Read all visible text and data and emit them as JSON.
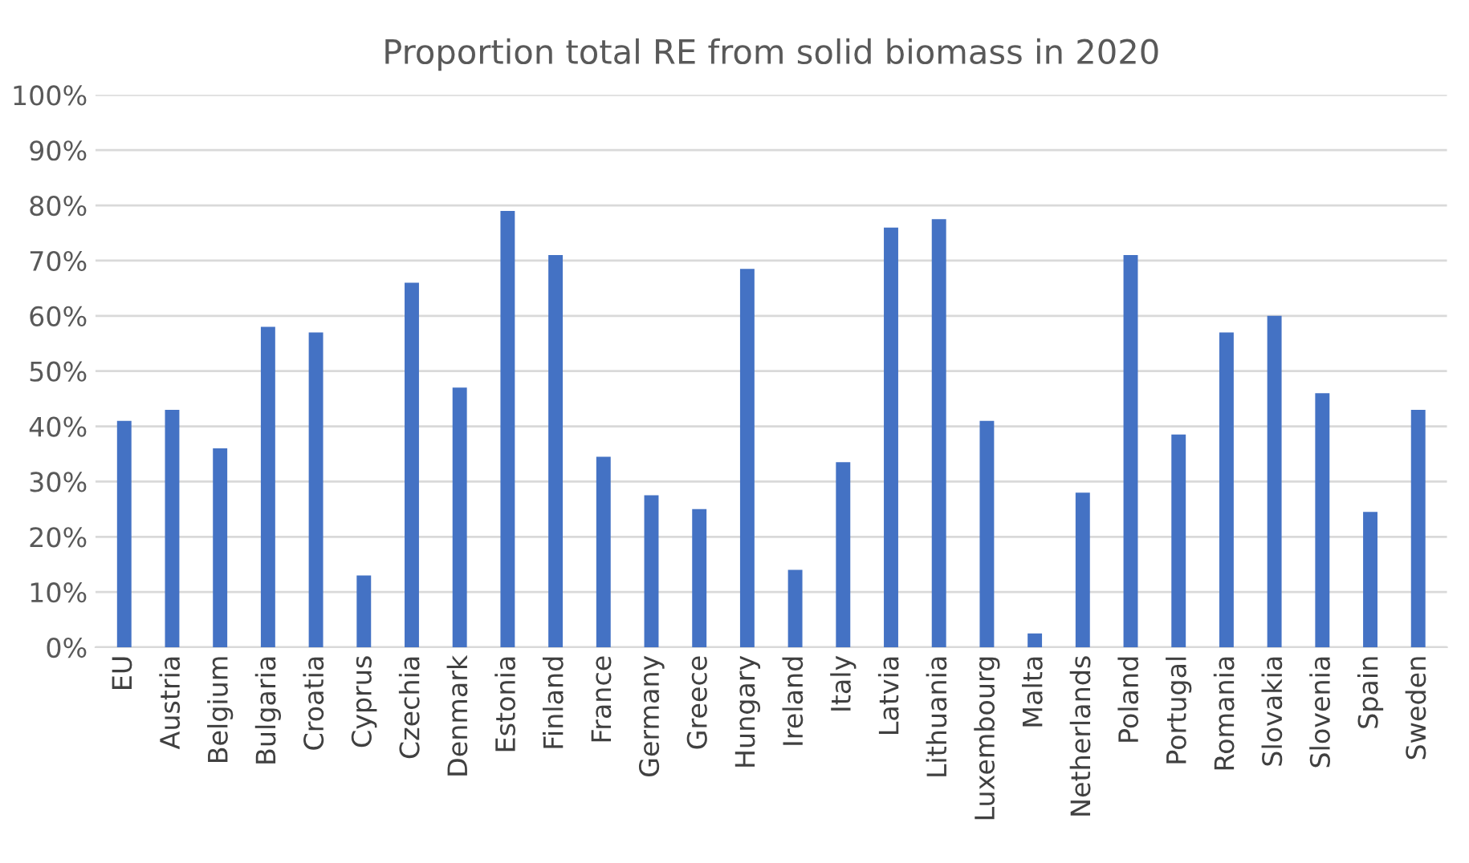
{
  "chart_data": {
    "type": "bar",
    "title": "Proportion total RE from solid biomass in 2020",
    "categories": [
      "EU",
      "Austria",
      "Belgium",
      "Bulgaria",
      "Croatia",
      "Cyprus",
      "Czechia",
      "Denmark",
      "Estonia",
      "Finland",
      "France",
      "Germany",
      "Greece",
      "Hungary",
      "Ireland",
      "Italy",
      "Latvia",
      "Lithuania",
      "Luxembourg",
      "Malta",
      "Netherlands",
      "Poland",
      "Portugal",
      "Romania",
      "Slovakia",
      "Slovenia",
      "Spain",
      "Sweden"
    ],
    "values": [
      41,
      43,
      36,
      58,
      57,
      13,
      66,
      47,
      79,
      71,
      34.5,
      27.5,
      25,
      68.5,
      14,
      33.5,
      76,
      77.5,
      41,
      2.5,
      28,
      71,
      38.5,
      57,
      60,
      46,
      24.5,
      43
    ],
    "color": "#4472c4",
    "ylim": [
      0,
      100
    ],
    "yticks": [
      {
        "value": 0,
        "label": "0%"
      },
      {
        "value": 10,
        "label": "10%"
      },
      {
        "value": 20,
        "label": "20%"
      },
      {
        "value": 30,
        "label": "30%"
      },
      {
        "value": 40,
        "label": "40%"
      },
      {
        "value": 50,
        "label": "50%"
      },
      {
        "value": 60,
        "label": "60%"
      },
      {
        "value": 70,
        "label": "70%"
      },
      {
        "value": 80,
        "label": "80%"
      },
      {
        "value": 90,
        "label": "90%"
      },
      {
        "value": 100,
        "label": "100%"
      }
    ],
    "grid": "y"
  }
}
